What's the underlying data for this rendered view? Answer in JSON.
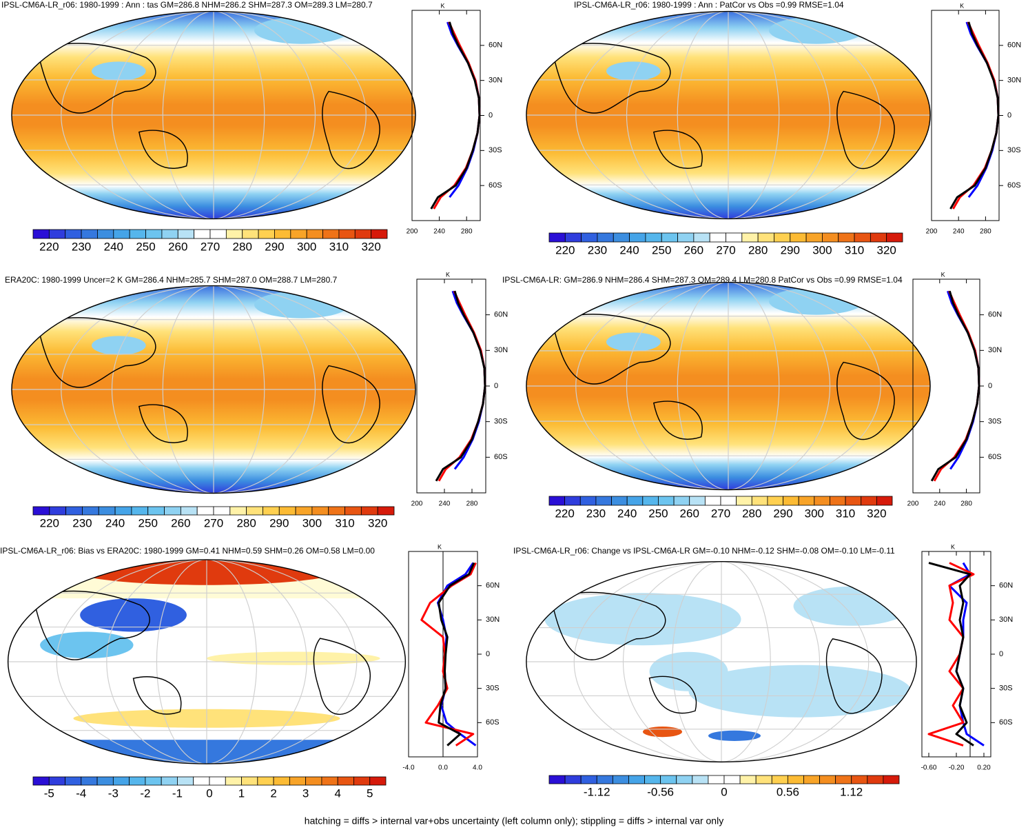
{
  "panels": [
    {
      "title": "IPSL-CM6A-LR_r06: 1980-1999 : Ann : tas GM=286.8 NHM=286.2 SHM=287.3 OM=289.3 LM=280.7",
      "colorbar": {
        "clim": [
          215,
          325
        ],
        "ticks": [
          220,
          230,
          240,
          250,
          260,
          270,
          280,
          290,
          300,
          310,
          320
        ]
      },
      "profile": {
        "unit": "K",
        "xlim": [
          200,
          300
        ],
        "xticks": [
          200,
          240,
          280
        ],
        "ylim": [
          -90,
          90
        ],
        "yticks": [
          {
            "value": 60,
            "label": "60N"
          },
          {
            "value": 30,
            "label": "30N"
          },
          {
            "value": 0,
            "label": "0"
          },
          {
            "value": -30,
            "label": "30S"
          },
          {
            "value": -60,
            "label": "60S"
          }
        ],
        "lat": [
          -80,
          -70,
          -60,
          -45,
          -30,
          -15,
          0,
          15,
          30,
          45,
          60,
          70,
          80
        ],
        "series": [
          {
            "color": "#0000ff",
            "values": [
              null,
              255,
              268,
              281,
              290,
              296,
              299,
              298,
              293,
              282,
              267,
              258,
              252
            ]
          },
          {
            "color": "#ff0000",
            "values": [
              232,
              242,
              262,
              279,
              289,
              296,
              299,
              298,
              293,
              283,
              270,
              262,
              254
            ]
          },
          {
            "color": "#000000",
            "values": [
              228,
              238,
              264,
              280,
              289,
              296,
              299,
              298,
              292,
              282,
              268,
              260,
              255
            ]
          }
        ]
      }
    },
    {
      "title": "IPSL-CM6A-LR_r06: 1980-1999 : Ann : PatCor vs Obs =0.99 RMSE=1.04",
      "colorbar": {
        "clim": [
          215,
          325
        ],
        "ticks": [
          220,
          230,
          240,
          250,
          260,
          270,
          280,
          290,
          300,
          310,
          320
        ]
      },
      "profile": {
        "unit": "K",
        "xlim": [
          200,
          300
        ],
        "xticks": [
          200,
          240,
          280
        ],
        "ylim": [
          -90,
          90
        ],
        "yticks": [
          {
            "value": 60,
            "label": "60N"
          },
          {
            "value": 30,
            "label": "30N"
          },
          {
            "value": 0,
            "label": "0"
          },
          {
            "value": -30,
            "label": "30S"
          },
          {
            "value": -60,
            "label": "60S"
          }
        ],
        "lat": [
          -80,
          -70,
          -60,
          -45,
          -30,
          -15,
          0,
          15,
          30,
          45,
          60,
          70,
          80
        ],
        "series": [
          {
            "color": "#0000ff",
            "values": [
              null,
              255,
              268,
              281,
              290,
              296,
              299,
              298,
              293,
              282,
              267,
              258,
              252
            ]
          },
          {
            "color": "#ff0000",
            "values": [
              232,
              242,
              262,
              279,
              289,
              296,
              299,
              298,
              293,
              283,
              270,
              262,
              254
            ]
          },
          {
            "color": "#000000",
            "values": [
              228,
              238,
              264,
              280,
              289,
              296,
              299,
              298,
              292,
              282,
              268,
              260,
              255
            ]
          }
        ]
      }
    },
    {
      "title": "ERA20C: 1980-1999 Uncer=2 K GM=286.4 NHM=285.7 SHM=287.0 OM=288.7 LM=280.7",
      "colorbar": {
        "clim": [
          215,
          325
        ],
        "ticks": [
          220,
          230,
          240,
          250,
          260,
          270,
          280,
          290,
          300,
          310,
          320
        ]
      },
      "profile": {
        "unit": "K",
        "xlim": [
          200,
          300
        ],
        "xticks": [
          200,
          240,
          280
        ],
        "ylim": [
          -90,
          90
        ],
        "yticks": [
          {
            "value": 60,
            "label": "60N"
          },
          {
            "value": 30,
            "label": "30N"
          },
          {
            "value": 0,
            "label": "0"
          },
          {
            "value": -30,
            "label": "30S"
          },
          {
            "value": -60,
            "label": "60S"
          }
        ],
        "lat": [
          -80,
          -70,
          -60,
          -45,
          -30,
          -15,
          0,
          15,
          30,
          45,
          60,
          70,
          80
        ],
        "series": [
          {
            "color": "#0000ff",
            "values": [
              null,
              255,
              268,
              281,
              290,
              296,
              299,
              298,
              293,
              282,
              267,
              258,
              252
            ]
          },
          {
            "color": "#ff0000",
            "values": [
              232,
              242,
              262,
              279,
              289,
              296,
              299,
              298,
              293,
              283,
              270,
              262,
              254
            ]
          },
          {
            "color": "#000000",
            "values": [
              228,
              238,
              264,
              280,
              289,
              296,
              299,
              298,
              292,
              282,
              268,
              260,
              255
            ]
          }
        ]
      }
    },
    {
      "title": "IPSL-CM6A-LR: GM=286.9 NHM=286.4 SHM=287.3 OM=289.4 LM=280.8 PatCor vs Obs =0.99 RMSE=1.04",
      "colorbar": {
        "clim": [
          215,
          325
        ],
        "ticks": [
          220,
          230,
          240,
          250,
          260,
          270,
          280,
          290,
          300,
          310,
          320
        ]
      },
      "profile": {
        "unit": "K",
        "xlim": [
          200,
          300
        ],
        "xticks": [
          200,
          240,
          280
        ],
        "ylim": [
          -90,
          90
        ],
        "yticks": [
          {
            "value": 60,
            "label": "60N"
          },
          {
            "value": 30,
            "label": "30N"
          },
          {
            "value": 0,
            "label": "0"
          },
          {
            "value": -30,
            "label": "30S"
          },
          {
            "value": -60,
            "label": "60S"
          }
        ],
        "lat": [
          -80,
          -70,
          -60,
          -45,
          -30,
          -15,
          0,
          15,
          30,
          45,
          60,
          70,
          80
        ],
        "series": [
          {
            "color": "#0000ff",
            "values": [
              null,
              256,
              268,
              281,
              290,
              296,
              299,
              298,
              293,
              282,
              267,
              258,
              252
            ]
          },
          {
            "color": "#ff0000",
            "values": [
              232,
              242,
              262,
              279,
              289,
              296,
              299,
              298,
              293,
              283,
              270,
              262,
              254
            ]
          },
          {
            "color": "#000000",
            "values": [
              228,
              238,
              264,
              280,
              289,
              296,
              299,
              298,
              292,
              282,
              268,
              260,
              255
            ]
          }
        ]
      }
    },
    {
      "title": "IPSL-CM6A-LR_r06: Bias vs ERA20C: 1980-1999 GM=0.41 NHM=0.59 SHM=0.26 OM=0.58 LM=0.00",
      "colorbar": {
        "clim": [
          -5.5,
          5.5
        ],
        "ticks": [
          -5,
          -4,
          -3,
          -2,
          -1,
          0,
          1,
          2,
          3,
          4,
          5
        ]
      },
      "profile": {
        "unit": "K",
        "xlim": [
          -4,
          4
        ],
        "xticks": [
          {
            "value": -4,
            "label": "-4.0"
          },
          {
            "value": 0,
            "label": "0.0"
          },
          {
            "value": 4,
            "label": "4.0"
          }
        ],
        "ylim": [
          -90,
          90
        ],
        "yticks": [
          {
            "value": 60,
            "label": "60N"
          },
          {
            "value": 30,
            "label": "30N"
          },
          {
            "value": 0,
            "label": "0"
          },
          {
            "value": -30,
            "label": "30S"
          },
          {
            "value": -60,
            "label": "60S"
          }
        ],
        "lat": [
          -80,
          -70,
          -60,
          -45,
          -30,
          -15,
          0,
          15,
          30,
          45,
          60,
          70,
          80
        ],
        "series": [
          {
            "color": "#0000ff",
            "values": [
              3.8,
              2.0,
              0.4,
              -0.2,
              0.3,
              0.2,
              0.2,
              0.4,
              0.0,
              -0.6,
              0.5,
              2.6,
              3.5
            ]
          },
          {
            "color": "#ff0000",
            "values": [
              1.5,
              3.5,
              -2.0,
              -0.6,
              0.5,
              0.0,
              0.2,
              0.0,
              -2.5,
              -1.5,
              1.0,
              3.2,
              3.8
            ]
          },
          {
            "color": "#000000",
            "values": [
              0.5,
              2.0,
              -0.5,
              -0.3,
              0.3,
              0.2,
              0.3,
              0.5,
              -0.2,
              -0.5,
              0.8,
              3.0,
              3.6
            ]
          }
        ]
      }
    },
    {
      "title": "IPSL-CM6A-LR_r06: Change vs IPSL-CM6A-LR GM=-0.10 NHM=-0.12 SHM=-0.08 OM=-0.10 LM=-0.11",
      "colorbar": {
        "clim": [
          -1.54,
          1.54
        ],
        "ticks": [
          -1.12,
          -0.56,
          0,
          0.56,
          1.12
        ]
      },
      "profile": {
        "unit": "K",
        "xlim": [
          -0.7,
          0.3
        ],
        "xticks": [
          {
            "value": -0.6,
            "label": "-0.60"
          },
          {
            "value": -0.2,
            "label": "-0.20"
          },
          {
            "value": 0.2,
            "label": "0.20"
          }
        ],
        "ylim": [
          -90,
          90
        ],
        "yticks": [
          {
            "value": 60,
            "label": "60N"
          },
          {
            "value": 30,
            "label": "30N"
          },
          {
            "value": 0,
            "label": "0"
          },
          {
            "value": -30,
            "label": "30S"
          },
          {
            "value": -60,
            "label": "60S"
          }
        ],
        "lat": [
          -80,
          -70,
          -60,
          -45,
          -30,
          -15,
          0,
          15,
          30,
          45,
          60,
          70,
          80
        ],
        "series": [
          {
            "color": "#0000ff",
            "values": [
              0.2,
              -0.05,
              -0.1,
              -0.15,
              -0.1,
              -0.2,
              -0.15,
              -0.1,
              -0.1,
              -0.05,
              -0.3,
              0.0,
              -0.1
            ]
          },
          {
            "color": "#ff0000",
            "values": [
              -0.1,
              -0.6,
              -0.1,
              -0.25,
              -0.1,
              -0.3,
              -0.15,
              -0.1,
              -0.3,
              -0.25,
              -0.3,
              0.05,
              -0.3
            ]
          },
          {
            "color": "#000000",
            "values": [
              0.05,
              -0.2,
              -0.05,
              -0.15,
              -0.1,
              -0.2,
              -0.15,
              -0.1,
              -0.15,
              -0.1,
              -0.15,
              0.0,
              -0.6
            ]
          }
        ]
      }
    }
  ],
  "colorbar_colors": [
    "#2a0fd6",
    "#2f3ddd",
    "#3060e0",
    "#3578de",
    "#3c8ee0",
    "#45a4e8",
    "#55b6ec",
    "#6cc4ef",
    "#8fd2f2",
    "#b8e2f5",
    "#ffffff",
    "#ffffff",
    "#fff2a8",
    "#ffe27a",
    "#ffd050",
    "#fcbb34",
    "#f8a428",
    "#f48e20",
    "#ef7318",
    "#e85512",
    "#e03a0e",
    "#d61a0a"
  ],
  "footer": "hatching = diffs > internal var+obs uncertainty (left column only); stippling = diffs > internal var only"
}
